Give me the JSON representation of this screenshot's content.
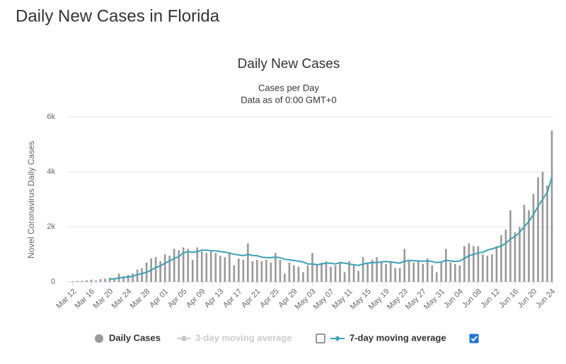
{
  "page_title": "Daily New Cases in Florida",
  "chart_data": {
    "type": "bar",
    "title": "Daily New Cases",
    "subtitle": [
      "Cases per Day",
      "Data as of 0:00 GMT+0"
    ],
    "y_label": "Novel Coronavirus Daily Cases",
    "categories": [
      "Mar 12",
      null,
      null,
      null,
      "Mar 16",
      null,
      null,
      null,
      "Mar 20",
      null,
      null,
      null,
      "Mar 24",
      null,
      null,
      null,
      "Mar 28",
      null,
      null,
      null,
      "Apr 01",
      null,
      null,
      null,
      "Apr 05",
      null,
      null,
      null,
      "Apr 09",
      null,
      null,
      null,
      "Apr 13",
      null,
      null,
      null,
      "Apr 17",
      null,
      null,
      null,
      "Apr 21",
      null,
      null,
      null,
      "Apr 25",
      null,
      null,
      null,
      "Apr 29",
      null,
      null,
      null,
      "May 03",
      null,
      null,
      null,
      "May 07",
      null,
      null,
      null,
      "May 11",
      null,
      null,
      null,
      "May 15",
      null,
      null,
      null,
      "May 19",
      null,
      null,
      null,
      "May 23",
      null,
      null,
      null,
      "May 27",
      null,
      null,
      null,
      "May 31",
      null,
      null,
      null,
      "Jun 04",
      null,
      null,
      null,
      "Jun 08",
      null,
      null,
      null,
      "Jun 12",
      null,
      null,
      null,
      "Jun 16",
      null,
      null,
      null,
      "Jun 20",
      null,
      null,
      null,
      "Jun 24"
    ],
    "series": [
      {
        "name": "Daily Cases",
        "type": "bar",
        "color": "#999999",
        "values": [
          20,
          30,
          40,
          60,
          80,
          50,
          100,
          120,
          150,
          130,
          300,
          200,
          250,
          300,
          450,
          500,
          700,
          850,
          900,
          750,
          1000,
          950,
          1200,
          1150,
          1250,
          1200,
          800,
          1250,
          1100,
          1050,
          1100,
          1050,
          950,
          900,
          1050,
          600,
          850,
          800,
          1400,
          750,
          800,
          750,
          800,
          700,
          1050,
          800,
          300,
          700,
          600,
          550,
          350,
          600,
          1050,
          600,
          700,
          750,
          550,
          600,
          700,
          350,
          750,
          600,
          400,
          900,
          700,
          800,
          900,
          700,
          650,
          750,
          500,
          500,
          1200,
          750,
          700,
          750,
          650,
          850,
          600,
          350,
          700,
          1200,
          700,
          650,
          600,
          1300,
          1400,
          1300,
          1300,
          1000,
          950,
          1000,
          1300,
          1700,
          1900,
          2600,
          1800,
          2000,
          2800,
          2600,
          3200,
          3800,
          4000,
          3500,
          5500
        ]
      },
      {
        "name": "7-day moving average",
        "type": "line",
        "color": "#3aa0b8",
        "checked": true,
        "values": [
          null,
          null,
          null,
          null,
          null,
          null,
          null,
          null,
          100,
          110,
          140,
          160,
          180,
          200,
          260,
          300,
          350,
          430,
          520,
          580,
          680,
          760,
          850,
          920,
          1050,
          1100,
          1070,
          1100,
          1150,
          1150,
          1130,
          1130,
          1100,
          1080,
          1050,
          1000,
          980,
          950,
          1000,
          960,
          950,
          900,
          880,
          880,
          900,
          880,
          820,
          800,
          780,
          750,
          720,
          650,
          650,
          620,
          650,
          680,
          680,
          650,
          700,
          680,
          650,
          620,
          600,
          650,
          680,
          700,
          700,
          720,
          740,
          720,
          700,
          680,
          750,
          780,
          770,
          760,
          750,
          760,
          740,
          700,
          720,
          780,
          760,
          740,
          760,
          850,
          950,
          1000,
          1050,
          1080,
          1150,
          1200,
          1250,
          1300,
          1400,
          1550,
          1650,
          1800,
          2000,
          2200,
          2450,
          2750,
          3000,
          3250,
          3800
        ]
      }
    ],
    "hidden_series": [
      {
        "name": "3-day moving average",
        "color": "#cccccc",
        "checked": false
      }
    ],
    "ylim": [
      0,
      6000
    ],
    "yticks": [
      0,
      {
        "value": 2000,
        "label": "2k"
      },
      {
        "value": 4000,
        "label": "4k"
      },
      {
        "value": 6000,
        "label": "6k"
      }
    ],
    "grid": true
  }
}
